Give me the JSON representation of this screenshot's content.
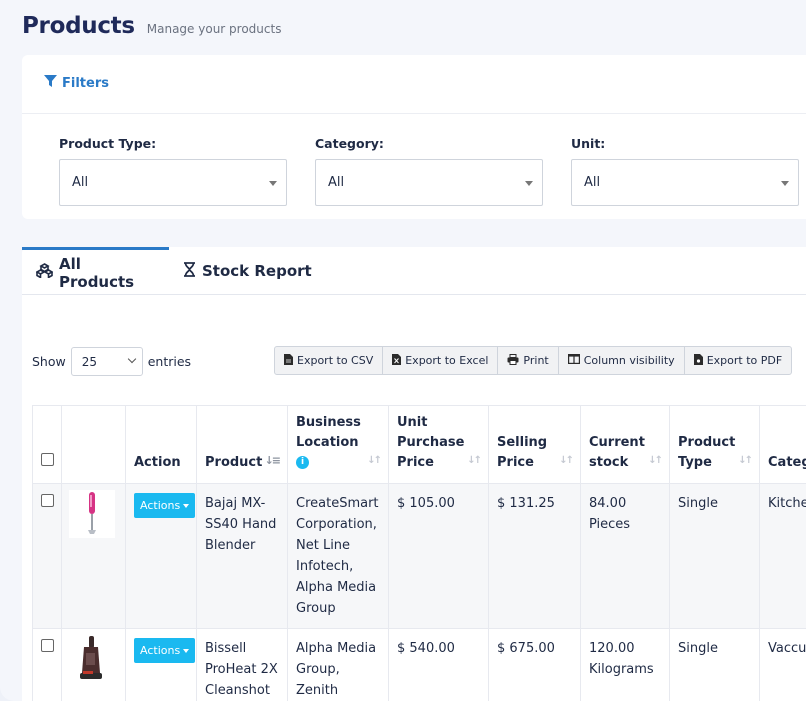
{
  "header": {
    "title": "Products",
    "subtitle": "Manage your products"
  },
  "filters": {
    "toggle_label": "Filters",
    "product_type": {
      "label": "Product Type:",
      "value": "All"
    },
    "category": {
      "label": "Category:",
      "value": "All"
    },
    "unit": {
      "label": "Unit:",
      "value": "All"
    }
  },
  "tabs": [
    {
      "label": "All Products",
      "icon": "cubes-icon",
      "active": true
    },
    {
      "label": "Stock Report",
      "icon": "hourglass-icon",
      "active": false
    }
  ],
  "table_controls": {
    "show_label": "Show",
    "entries_value": "25",
    "entries_label": "entries",
    "exports": [
      "Export to CSV",
      "Export to Excel",
      "Print",
      "Column visibility",
      "Export to PDF"
    ]
  },
  "table": {
    "columns": [
      "",
      "",
      "Action",
      "Product",
      "Business Location",
      "Unit Purchase Price",
      "Selling Price",
      "Current stock",
      "Product Type",
      "Categ"
    ],
    "rows": [
      {
        "action": "Actions",
        "product": "Bajaj MX-SS40 Hand Blender",
        "location": "CreateSmart Corporation, Net Line Infotech, Alpha Media Group",
        "purchase_price": "$ 105.00",
        "selling_price": "$ 131.25",
        "stock": "84.00 Pieces",
        "type": "Single",
        "category": "Kitche Applia"
      },
      {
        "action": "Actions",
        "product": "Bissell ProHeat 2X Cleanshot",
        "location": "Alpha Media Group, Zenith Electronics",
        "purchase_price": "$ 540.00",
        "selling_price": "$ 675.00",
        "stock": "120.00 Kilograms",
        "type": "Single",
        "category": "Vaccu Clean"
      }
    ]
  },
  "colors": {
    "accent": "#2a7ac7",
    "action_button": "#1ab9f0",
    "title": "#1f2a5a"
  }
}
